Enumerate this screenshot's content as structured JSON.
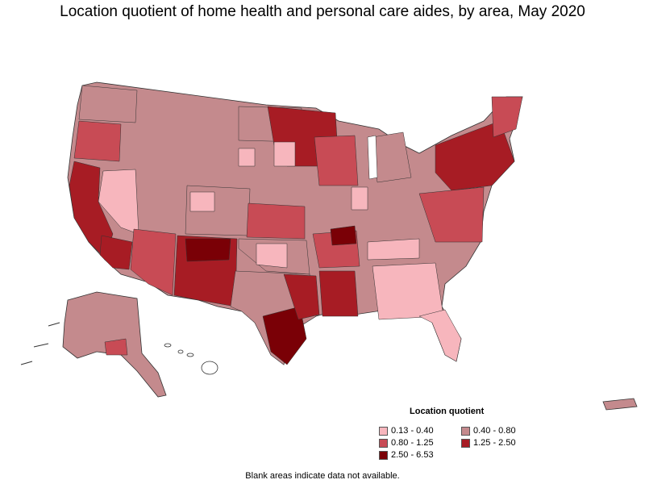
{
  "title": "Location quotient of home health and personal care aides, by area, May 2020",
  "legend": {
    "title": "Location quotient",
    "items": [
      {
        "label": "0.13 - 0.40",
        "color": "#f7b6bd"
      },
      {
        "label": "0.40 - 0.80",
        "color": "#c48a8d"
      },
      {
        "label": "0.80 - 1.25",
        "color": "#c84b55"
      },
      {
        "label": "1.25 - 2.50",
        "color": "#a71c24"
      },
      {
        "label": "2.50 - 6.53",
        "color": "#7a0006"
      }
    ]
  },
  "footnote": "Blank areas indicate data not available.",
  "colors": {
    "background": "#ffffff",
    "border": "#333333"
  }
}
